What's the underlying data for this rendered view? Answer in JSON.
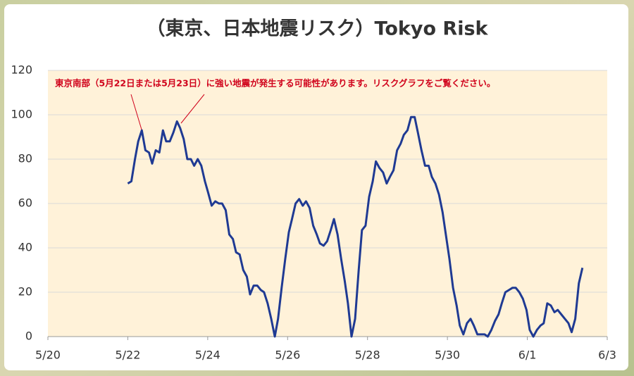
{
  "chart_data": {
    "type": "line",
    "title": "（東京、日本地震リスク）Tokyo Risk",
    "annotation": "東京南部（5月22日または5月23日）に強い地震が発生する可能性があります。リスクグラフをご覧ください。",
    "x": [
      2.0,
      2.09,
      2.18,
      2.26,
      2.35,
      2.44,
      2.53,
      2.61,
      2.7,
      2.79,
      2.88,
      2.96,
      3.05,
      3.14,
      3.23,
      3.31,
      3.4,
      3.49,
      3.58,
      3.66,
      3.75,
      3.84,
      3.93,
      4.01,
      4.1,
      4.19,
      4.28,
      4.36,
      4.45,
      4.54,
      4.63,
      4.71,
      4.8,
      4.89,
      4.98,
      5.06,
      5.15,
      5.24,
      5.33,
      5.41,
      5.5,
      5.59,
      5.68,
      5.76,
      5.85,
      5.94,
      6.03,
      6.11,
      6.2,
      6.29,
      6.38,
      6.46,
      6.55,
      6.64,
      6.73,
      6.81,
      6.9,
      6.99,
      7.08,
      7.16,
      7.25,
      7.34,
      7.43,
      7.51,
      7.6,
      7.69,
      7.78,
      7.86,
      7.95,
      8.04,
      8.13,
      8.21,
      8.3,
      8.39,
      8.48,
      8.56,
      8.65,
      8.74,
      8.83,
      8.91,
      9.0,
      9.09,
      9.18,
      9.26,
      9.35,
      9.44,
      9.53,
      9.61,
      9.7,
      9.79,
      9.88,
      9.96,
      10.05,
      10.14,
      10.23,
      10.31,
      10.4,
      10.49,
      10.58,
      10.66,
      10.75,
      10.84,
      10.93,
      11.01,
      11.1,
      11.19,
      11.28,
      11.36,
      11.45,
      11.54,
      11.63,
      11.71,
      11.8,
      11.89,
      11.98,
      12.06,
      12.15,
      12.24,
      12.33,
      12.41,
      12.5,
      12.59,
      12.68,
      12.76,
      12.85,
      12.94,
      13.03,
      13.11,
      13.2,
      13.29,
      13.38
    ],
    "series": [
      {
        "color": "#1f3a93",
        "values": [
          69,
          70,
          80,
          88,
          93,
          84,
          83,
          78,
          84,
          83,
          93,
          88,
          88,
          92,
          97,
          94,
          89,
          80,
          80,
          77,
          80,
          77,
          70,
          65,
          59,
          61,
          60,
          60,
          57,
          46,
          44,
          38,
          37,
          30,
          27,
          19,
          23,
          23,
          21,
          20,
          15,
          8,
          0,
          8,
          22,
          35,
          47,
          53,
          60,
          62,
          59,
          61,
          58,
          50,
          46,
          42,
          41,
          43,
          48,
          53,
          46,
          35,
          25,
          15,
          0,
          8,
          30,
          48,
          50,
          63,
          70,
          79,
          76,
          74,
          69,
          72,
          75,
          84,
          87,
          91,
          93,
          99,
          99,
          92,
          84,
          77,
          77,
          72,
          69,
          64,
          56,
          46,
          35,
          22,
          14,
          5,
          1,
          6,
          8,
          5,
          1,
          1,
          1,
          0,
          3,
          7,
          10,
          15,
          20,
          21,
          22,
          22,
          20,
          17,
          12,
          3,
          0,
          3,
          5,
          6,
          15,
          14,
          11,
          12,
          10,
          8,
          6,
          2,
          8,
          24,
          31
        ]
      }
    ],
    "xlim": [
      0,
      14
    ],
    "xticks": [
      {
        "value": 0,
        "label": "5/20"
      },
      {
        "value": 2,
        "label": "5/22"
      },
      {
        "value": 4,
        "label": "5/24"
      },
      {
        "value": 6,
        "label": "5/26"
      },
      {
        "value": 8,
        "label": "5/28"
      },
      {
        "value": 10,
        "label": "5/30"
      },
      {
        "value": 12,
        "label": "6/1"
      },
      {
        "value": 14,
        "label": "6/3"
      }
    ],
    "ylim": [
      0,
      120
    ],
    "yticks": [
      0,
      20,
      40,
      60,
      80,
      100,
      120
    ],
    "grid": true
  }
}
